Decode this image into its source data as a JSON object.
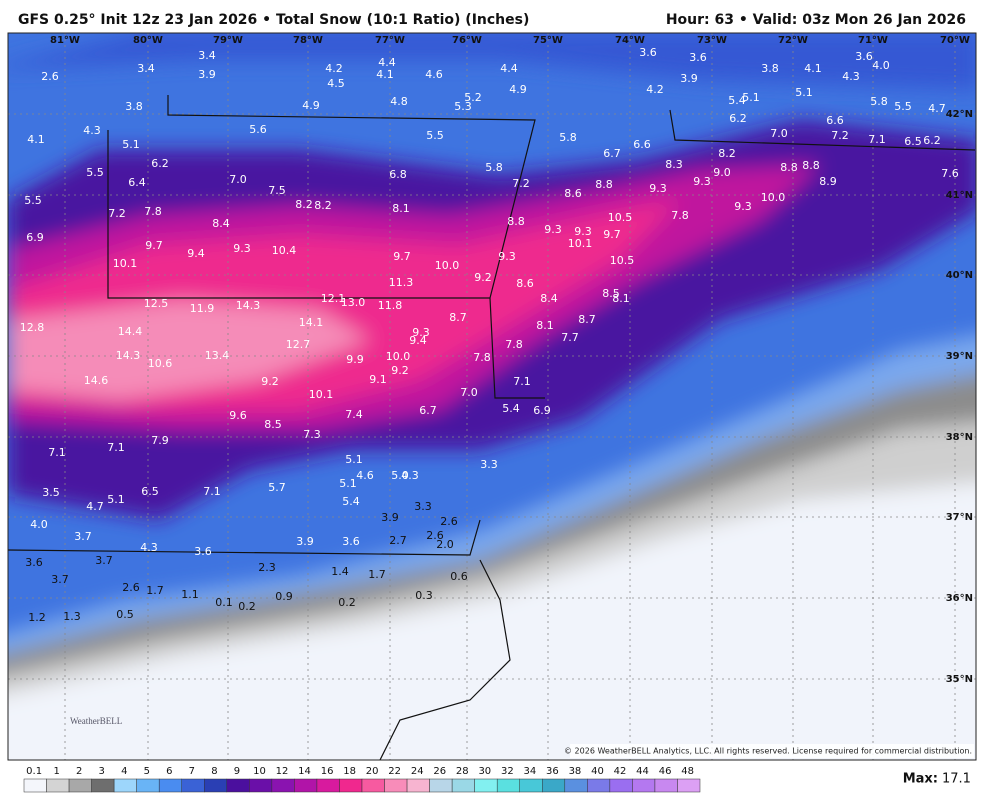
{
  "header": {
    "title": "GFS 0.25° Init 12z 23 Jan 2026 • Total Snow (10:1 Ratio) (Inches)",
    "valid": "Hour: 63 • Valid: 03z Mon 26 Jan 2026"
  },
  "map": {
    "lon_labels": [
      "81°W",
      "80°W",
      "79°W",
      "78°W",
      "77°W",
      "76°W",
      "75°W",
      "74°W",
      "73°W",
      "72°W",
      "71°W",
      "70°W"
    ],
    "lat_labels": [
      "42°N",
      "41°N",
      "40°N",
      "39°N",
      "38°N",
      "37°N",
      "36°N",
      "35°N"
    ],
    "snow_labels": [
      "2.6",
      "3.4",
      "3.4",
      "3.9",
      "4.2",
      "4.5",
      "4.4",
      "4.1",
      "4.6",
      "4.4",
      "4.9",
      "5.2",
      "5.3",
      "4.8",
      "4.9",
      "3.8",
      "4.3",
      "4.1",
      "5.1",
      "5.6",
      "5.5",
      "5.8",
      "3.6",
      "3.6",
      "3.9",
      "4.2",
      "3.8",
      "4.1",
      "4.3",
      "4.0",
      "3.6",
      "5.1",
      "5.4",
      "5.1",
      "5.8",
      "5.5",
      "4.7",
      "6.2",
      "7.0",
      "6.6",
      "7.2",
      "7.1",
      "6.5",
      "6.2",
      "7.6",
      "6.6",
      "6.7",
      "8.3",
      "8.2",
      "9.0",
      "9.3",
      "9.3",
      "8.8",
      "8.8",
      "8.9",
      "10.0",
      "9.3",
      "7.8",
      "10.5",
      "8.8",
      "8.6",
      "7.2",
      "5.8",
      "6.8",
      "6.2",
      "6.4",
      "5.5",
      "5.5",
      "7.0",
      "7.5",
      "8.2",
      "8.2",
      "8.1",
      "7.8",
      "7.2",
      "8.4",
      "6.9",
      "9.7",
      "9.4",
      "9.3",
      "10.4",
      "9.7",
      "10.0",
      "8.8",
      "9.3",
      "9.3",
      "9.7",
      "10.1",
      "9.3",
      "9.2",
      "10.5",
      "10.1",
      "11.3",
      "8.6",
      "8.4",
      "8.5",
      "8.1",
      "12.5",
      "11.9",
      "14.3",
      "12.1",
      "13.0",
      "11.8",
      "14.1",
      "8.7",
      "8.1",
      "8.7",
      "7.7",
      "12.8",
      "14.4",
      "12.7",
      "9.3",
      "9.4",
      "14.3",
      "13.4",
      "10.0",
      "9.9",
      "9.2",
      "9.1",
      "7.8",
      "7.8",
      "10.6",
      "14.6",
      "9.2",
      "7.1",
      "7.0",
      "10.1",
      "6.7",
      "7.4",
      "9.6",
      "5.4",
      "6.9",
      "8.5",
      "7.3",
      "7.9",
      "7.1",
      "7.1",
      "5.1",
      "4.6",
      "5.1",
      "5.0",
      "4.3",
      "3.3",
      "5.7",
      "7.1",
      "6.5",
      "3.5",
      "4.7",
      "5.1",
      "5.4",
      "3.3",
      "3.9",
      "4.0",
      "2.6",
      "3.7",
      "2.6",
      "2.0",
      "3.9",
      "3.6",
      "2.7",
      "4.3",
      "3.6",
      "3.7",
      "3.6",
      "2.3",
      "1.4",
      "1.7",
      "0.6",
      "3.7",
      "2.6",
      "1.7",
      "1.1",
      "0.9",
      "0.3",
      "0.1",
      "0.2",
      "0.2",
      "0.5",
      "1.2",
      "1.3"
    ],
    "logo": "WeatherBELL",
    "copyright": "© 2026 WeatherBELL Analytics, LLC. All rights reserved. License required for commercial distribution."
  },
  "colorbar": {
    "labels": [
      "0.1",
      "1",
      "2",
      "3",
      "4",
      "5",
      "6",
      "7",
      "8",
      "9",
      "10",
      "12",
      "14",
      "16",
      "18",
      "20",
      "22",
      "24",
      "26",
      "28",
      "30",
      "32",
      "34",
      "36",
      "38",
      "40",
      "42",
      "44",
      "46",
      "48"
    ],
    "colors": [
      "#f4f6fb",
      "#d4d4d4",
      "#a8a8a8",
      "#6e6e6e",
      "#9dd6fb",
      "#69b4f6",
      "#4a8cf0",
      "#3a62d6",
      "#2a3fb4",
      "#4b0f9e",
      "#6a0fa8",
      "#8a13b0",
      "#b114a8",
      "#d81a9e",
      "#f0288e",
      "#f75aa0",
      "#f88cb9",
      "#f7b4d0",
      "#b8d6e8",
      "#9ad8e6",
      "#82f0f0",
      "#5ae0e0",
      "#48c8d8",
      "#3aa8c8",
      "#5a90e0",
      "#7a7ae8",
      "#9a6ef0",
      "#b478f0",
      "#c888f0",
      "#dca0f4"
    ],
    "max_label": "Max:",
    "max_value": "17.1"
  }
}
